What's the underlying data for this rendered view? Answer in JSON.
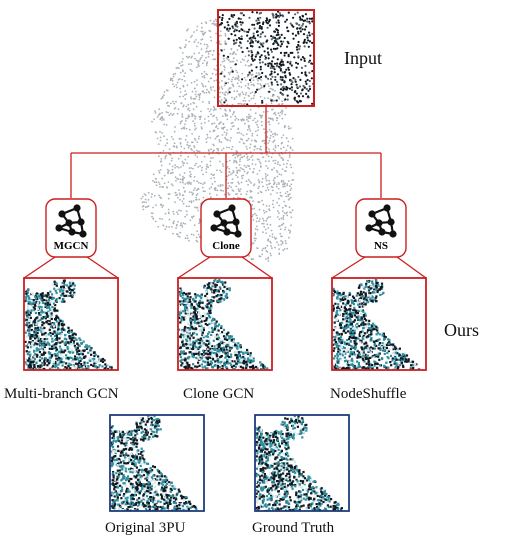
{
  "labels": {
    "input": "Input",
    "ours": "Ours"
  },
  "modules": [
    {
      "abbr": "MGCN",
      "name": "Multi-branch GCN"
    },
    {
      "abbr": "Clone",
      "name": "Clone GCN"
    },
    {
      "abbr": "NS",
      "name": "NodeShuffle"
    }
  ],
  "comparisons": [
    {
      "name": "Original 3PU"
    },
    {
      "name": "Ground Truth"
    }
  ],
  "colors": {
    "red": "#cc1f1f",
    "blue": "#1f3d7a",
    "point_gray": "#aab3b8",
    "point_dark": "#101820",
    "point_teal": "#2f8fa0"
  }
}
